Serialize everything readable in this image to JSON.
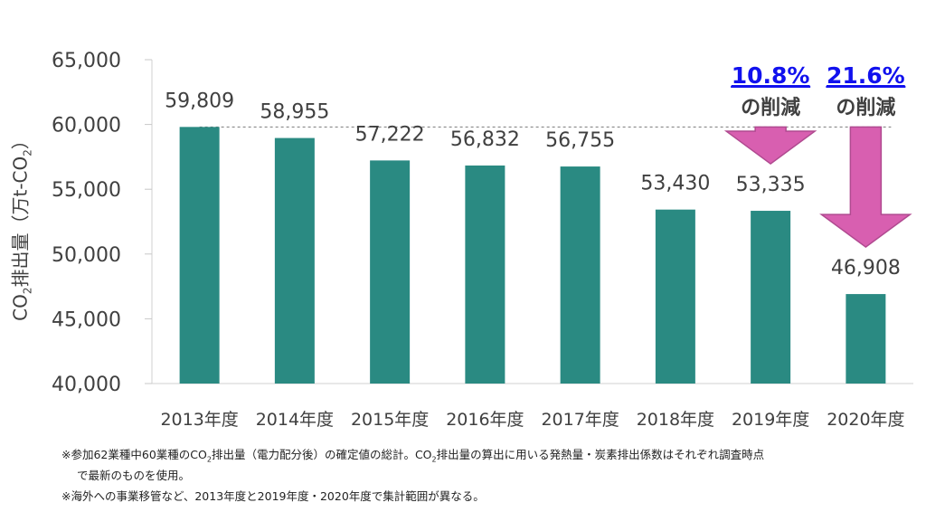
{
  "chart_data": {
    "type": "bar",
    "categories": [
      "2013年度",
      "2014年度",
      "2015年度",
      "2016年度",
      "2017年度",
      "2018年度",
      "2019年度",
      "2020年度"
    ],
    "values": [
      59809,
      58955,
      57222,
      56832,
      56755,
      53430,
      53335,
      46908
    ],
    "data_labels": [
      "59,809",
      "58,955",
      "57,222",
      "56,832",
      "56,755",
      "53,430",
      "53,335",
      "46,908"
    ],
    "ylim": [
      40000,
      65000
    ],
    "yticks": [
      40000,
      45000,
      50000,
      55000,
      60000,
      65000
    ],
    "ytick_labels": [
      "40,000",
      "45,000",
      "50,000",
      "55,000",
      "60,000",
      "65,000"
    ],
    "ylabel": "CO2排出量（万t-CO2）",
    "reference_line": 59809,
    "bar_color": "#2a8a82",
    "annotations": [
      {
        "category": "2019年度",
        "percent": "10.8%",
        "text": "の削減"
      },
      {
        "category": "2020年度",
        "percent": "21.6%",
        "text": "の削減"
      }
    ],
    "arrow_color": "#d85fb0",
    "percent_color": "#1111ee"
  },
  "ylabel": {
    "main": "CO",
    "sub1": "2",
    "mid": "排出量（万t-CO",
    "sub2": "2",
    "end": "）"
  },
  "notes": {
    "line1_a": "※参加62業種中60業種のCO",
    "line1_sub": "2",
    "line1_b": "排出量（電力配分後）の確定値の総計。CO",
    "line1_sub2": "2",
    "line1_c": "排出量の算出に用いる発熱量・炭素排出係数はそれぞれ調査時点",
    "line2": "で最新のものを使用。",
    "line3": "※海外への事業移管など、2013年度と2019年度・2020年度で集計範囲が異なる。"
  }
}
